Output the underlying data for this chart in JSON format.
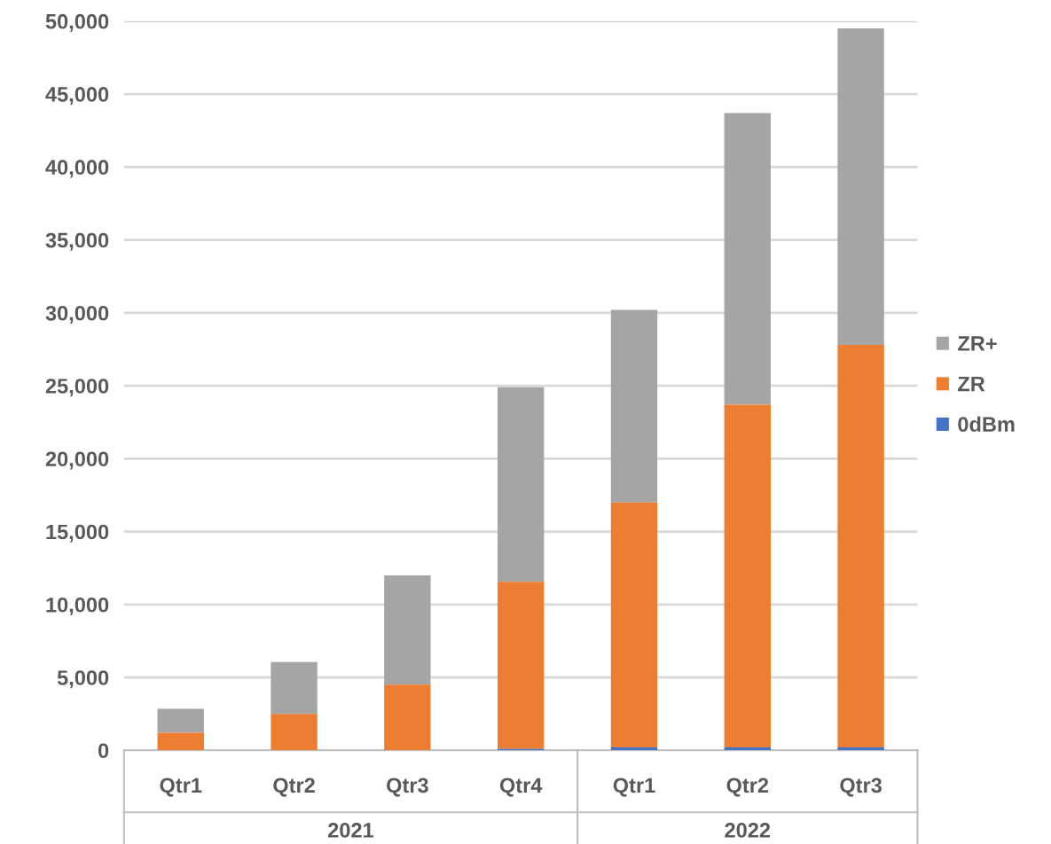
{
  "chart_data": {
    "type": "bar",
    "stacked": true,
    "categories": [
      "Qtr1",
      "Qtr2",
      "Qtr3",
      "Qtr4",
      "Qtr1",
      "Qtr2",
      "Qtr3"
    ],
    "series": [
      {
        "name": "0dBm",
        "color": "#4472c4",
        "values": [
          0,
          0,
          0,
          100,
          200,
          200,
          200
        ]
      },
      {
        "name": "ZR",
        "color": "#ed7d31",
        "values": [
          1200,
          2500,
          4500,
          11450,
          16800,
          23500,
          27600
        ]
      },
      {
        "name": "ZR+",
        "color": "#a5a5a5",
        "values": [
          1650,
          3550,
          7500,
          13350,
          13200,
          20000,
          21700
        ]
      }
    ],
    "ylim": [
      0,
      50000
    ],
    "yticks": [
      {
        "value": 0,
        "label": "0"
      },
      {
        "value": 5000,
        "label": "5,000"
      },
      {
        "value": 10000,
        "label": "10,000"
      },
      {
        "value": 15000,
        "label": "15,000"
      },
      {
        "value": 20000,
        "label": "20,000"
      },
      {
        "value": 25000,
        "label": "25,000"
      },
      {
        "value": 30000,
        "label": "30,000"
      },
      {
        "value": 35000,
        "label": "35,000"
      },
      {
        "value": 40000,
        "label": "40,000"
      },
      {
        "value": 45000,
        "label": "45,000"
      },
      {
        "value": 50000,
        "label": "50,000"
      }
    ],
    "annotations": [
      "2021",
      "2022"
    ],
    "grid": "y",
    "legend": "right"
  }
}
